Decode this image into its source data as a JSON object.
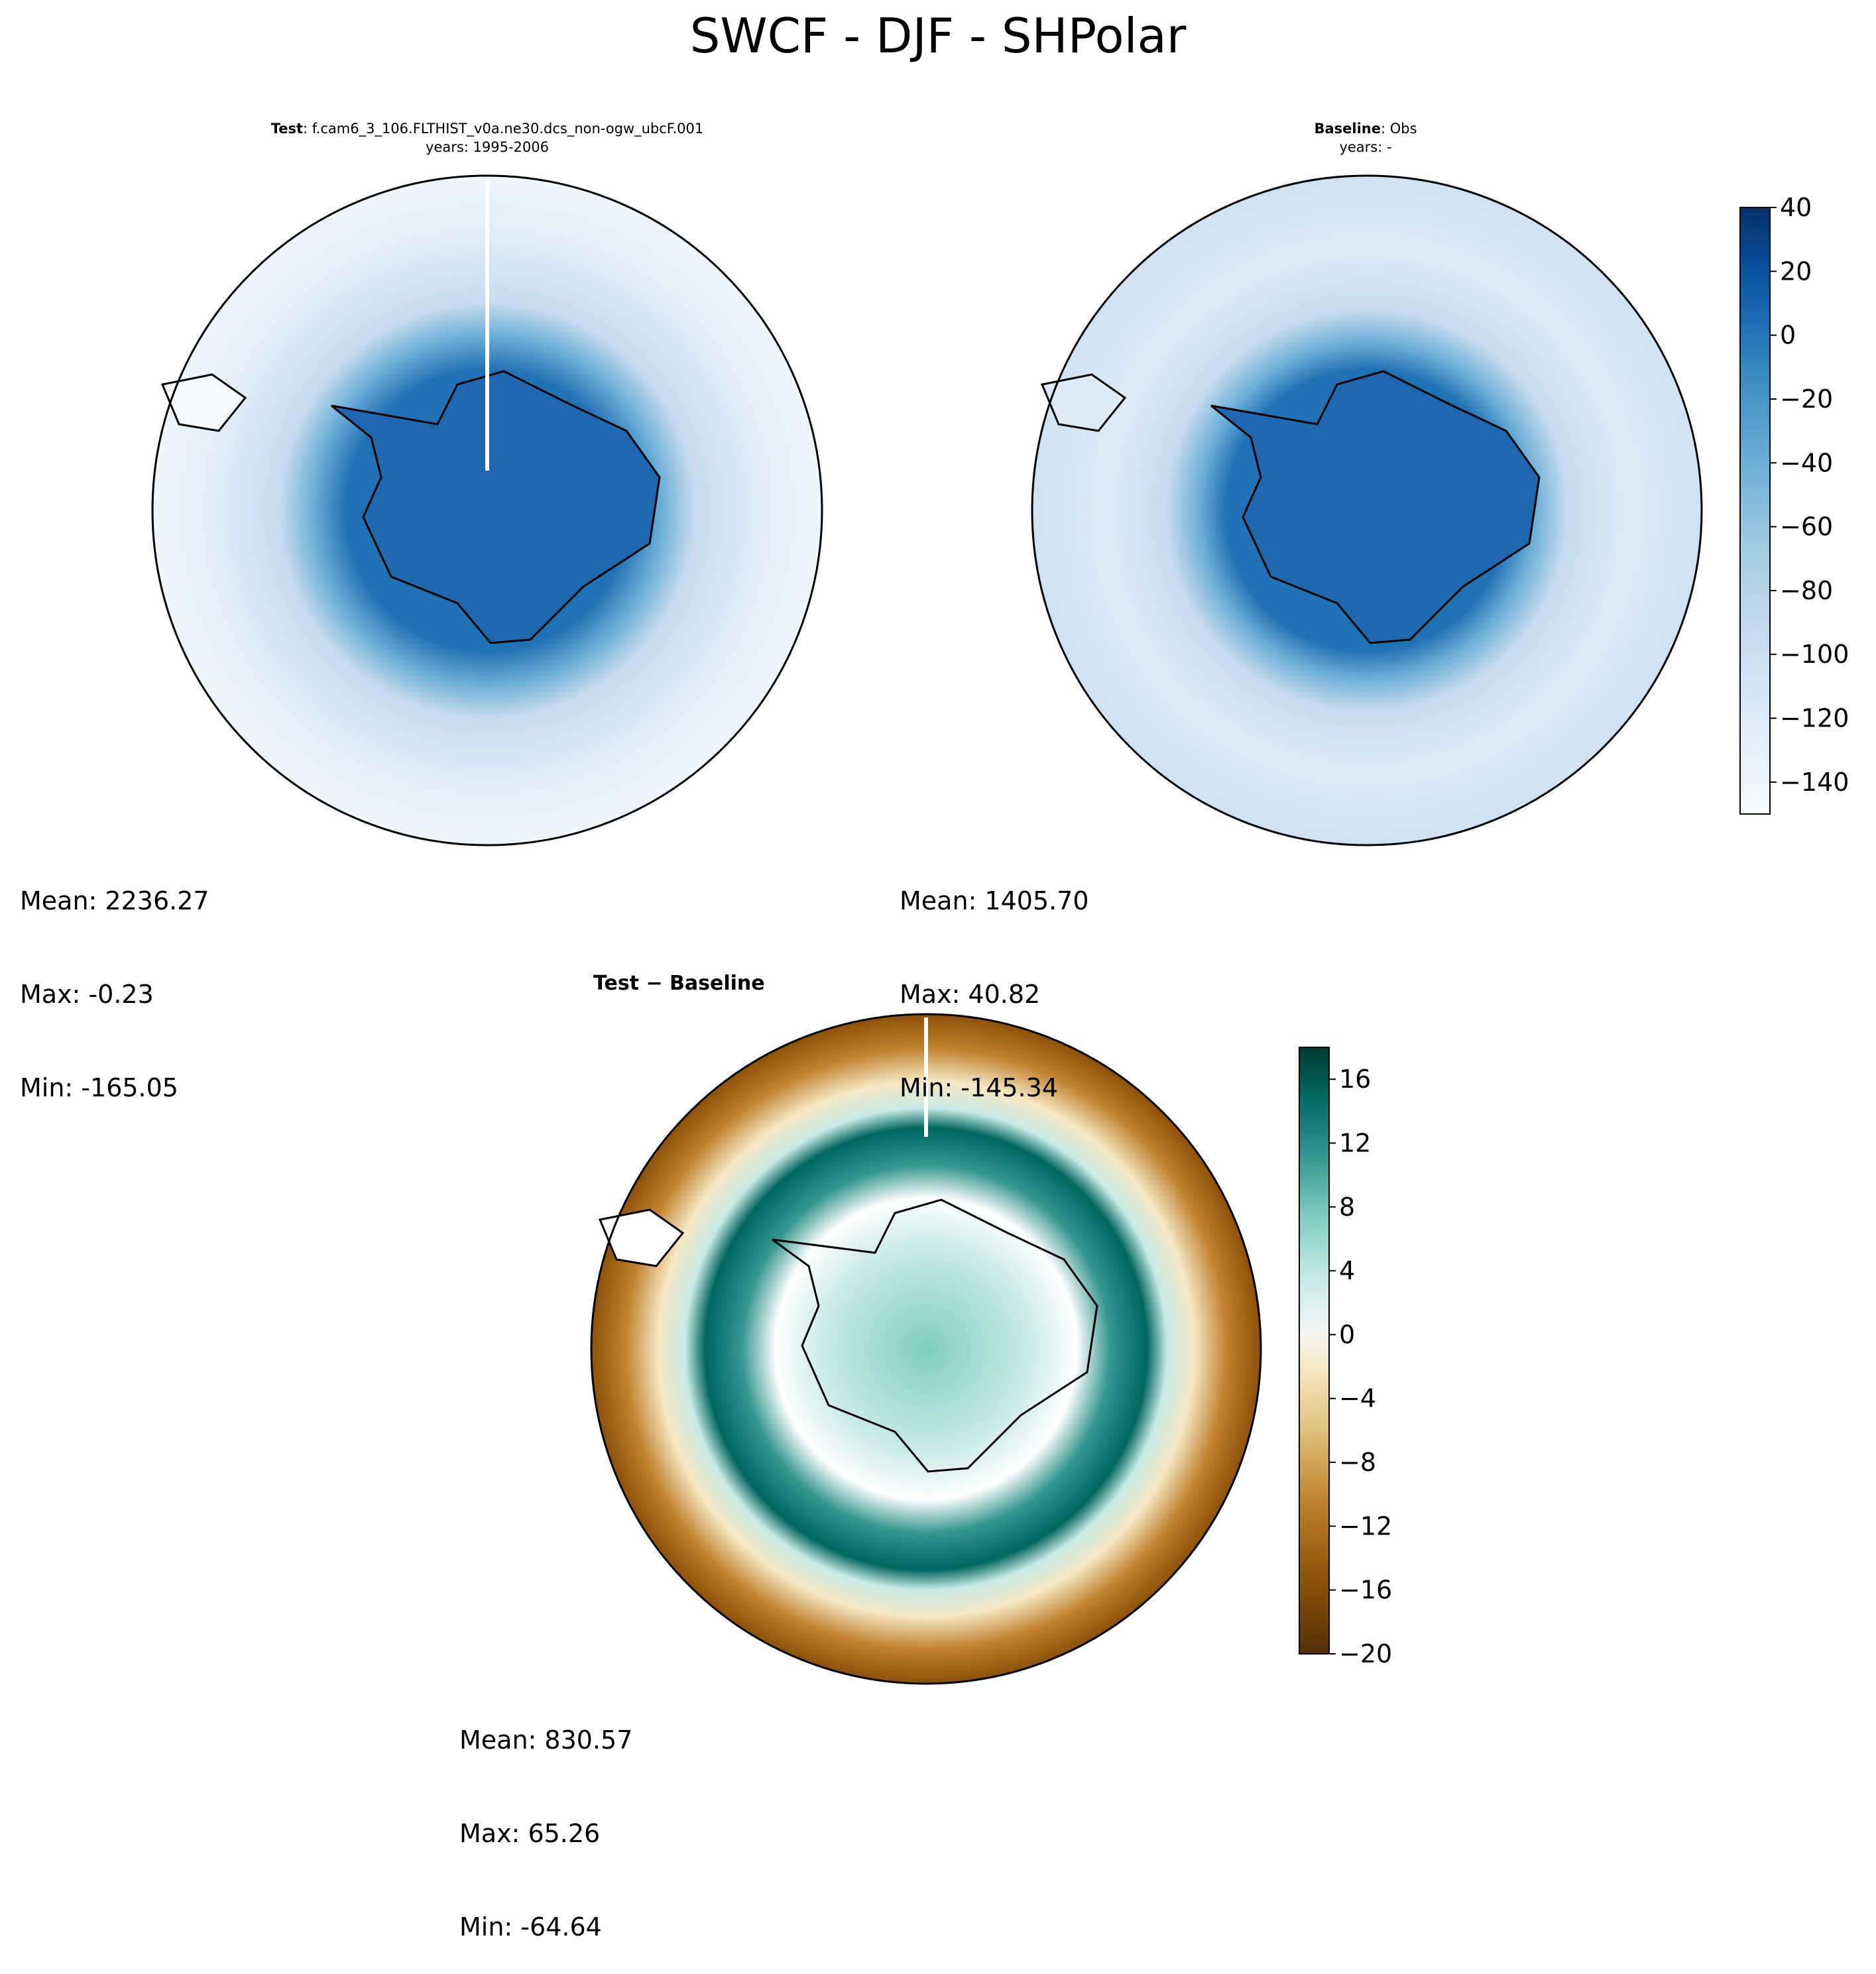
{
  "figure_title": "SWCF - DJF - SHPolar",
  "panels": {
    "test": {
      "title_bold": "Test",
      "title_rest": ": f.cam6_3_106.FLTHIST_v0a.ne30.dcs_non-ogw_ubcF.001",
      "subtitle": "years: 1995-2006",
      "mean": "Mean: 2236.27",
      "max": "Max: -0.23",
      "min": "Min: -165.05"
    },
    "baseline": {
      "title_bold": "Baseline",
      "title_rest": ": Obs",
      "subtitle": "years: -",
      "mean": "Mean: 1405.70",
      "max": "Max: 40.82",
      "min": "Min: -145.34"
    },
    "diff": {
      "title": "Test − Baseline",
      "mean": "Mean: 830.57",
      "max": "Max: 65.26",
      "min": "Min: -64.64"
    }
  },
  "colors": {
    "blues_colormap": [
      "#f7fbff",
      "#deebf7",
      "#c6dbef",
      "#9ecae1",
      "#6baed6",
      "#4292c6",
      "#2171b5",
      "#08519c",
      "#08306b"
    ],
    "brbg_colormap": [
      "#543005",
      "#8c510a",
      "#bf812d",
      "#dfc27d",
      "#f6e8c3",
      "#f5f5f5",
      "#c7eae5",
      "#80cdc1",
      "#35978f",
      "#01665e",
      "#003c30"
    ],
    "continent_fill": "#1f68b0"
  },
  "chart_data": [
    {
      "type": "heatmap",
      "name": "SWCF test (polar stereographic, Southern Hemisphere)",
      "colorbar_ticks": [
        40,
        20,
        0,
        -20,
        -40,
        -60,
        -80,
        -100,
        -120,
        -140
      ],
      "colorbar_range": [
        -150,
        40
      ],
      "stats": {
        "mean": 2236.27,
        "max": -0.23,
        "min": -165.05
      }
    },
    {
      "type": "heatmap",
      "name": "SWCF baseline (polar stereographic, Southern Hemisphere)",
      "colorbar_ticks": [
        40,
        20,
        0,
        -20,
        -40,
        -60,
        -80,
        -100,
        -120,
        -140
      ],
      "colorbar_range": [
        -150,
        40
      ],
      "stats": {
        "mean": 1405.7,
        "max": 40.82,
        "min": -145.34
      }
    },
    {
      "type": "heatmap",
      "name": "Test - Baseline difference",
      "colorbar_ticks": [
        16,
        12,
        8,
        4,
        0,
        -4,
        -8,
        -12,
        -16,
        -20
      ],
      "colorbar_range": [
        -20,
        18
      ],
      "stats": {
        "mean": 830.57,
        "max": 65.26,
        "min": -64.64
      }
    }
  ],
  "colorbar1_ticks": [
    "40",
    "20",
    "0",
    "−20",
    "−40",
    "−60",
    "−80",
    "−100",
    "−120",
    "−140"
  ],
  "colorbar2_ticks": [
    "16",
    "12",
    "8",
    "4",
    "0",
    "−4",
    "−8",
    "−12",
    "−16",
    "−20"
  ]
}
